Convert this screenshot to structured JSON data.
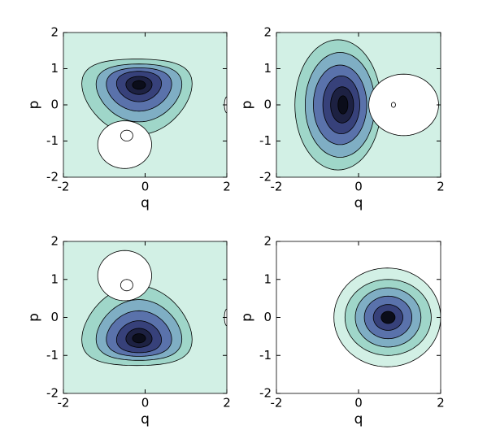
{
  "chart_data": [
    {
      "type": "contour",
      "xlabel": "q",
      "ylabel": "p",
      "xlim": [
        -2,
        2
      ],
      "ylim": [
        -2,
        2
      ],
      "xticks": [
        -2,
        0,
        2
      ],
      "yticks": [
        -2,
        -1,
        0,
        1,
        2
      ],
      "colors": [
        "#d2f0e5",
        "#9fd6c9",
        "#7faec4",
        "#5a72ab",
        "#37417a",
        "#1d2142",
        "#0b0d1a"
      ]
    },
    {
      "type": "contour",
      "xlabel": "q",
      "ylabel": "p",
      "xlim": [
        -2,
        2
      ],
      "ylim": [
        -2,
        2
      ],
      "xticks": [
        -2,
        0,
        2
      ],
      "yticks": [
        -2,
        -1,
        0,
        1,
        2
      ],
      "colors": [
        "#d2f0e5",
        "#9fd6c9",
        "#7faec4",
        "#5a72ab",
        "#37417a",
        "#1d2142",
        "#0b0d1a"
      ]
    },
    {
      "type": "contour",
      "xlabel": "q",
      "ylabel": "p",
      "xlim": [
        -2,
        2
      ],
      "ylim": [
        -2,
        2
      ],
      "xticks": [
        -2,
        0,
        2
      ],
      "yticks": [
        -2,
        -1,
        0,
        1,
        2
      ],
      "colors": [
        "#d2f0e5",
        "#9fd6c9",
        "#7faec4",
        "#5a72ab",
        "#37417a",
        "#1d2142",
        "#0b0d1a"
      ]
    },
    {
      "type": "contour",
      "xlabel": "q",
      "ylabel": "p",
      "xlim": [
        -2,
        2
      ],
      "ylim": [
        -2,
        2
      ],
      "xticks": [
        -2,
        0,
        2
      ],
      "yticks": [
        -2,
        -1,
        0,
        1,
        2
      ],
      "colors": [
        "#ffffff",
        "#d2f0e5",
        "#9fd6c9",
        "#7faec4",
        "#5a72ab",
        "#37417a",
        "#0b0d1a"
      ]
    }
  ]
}
